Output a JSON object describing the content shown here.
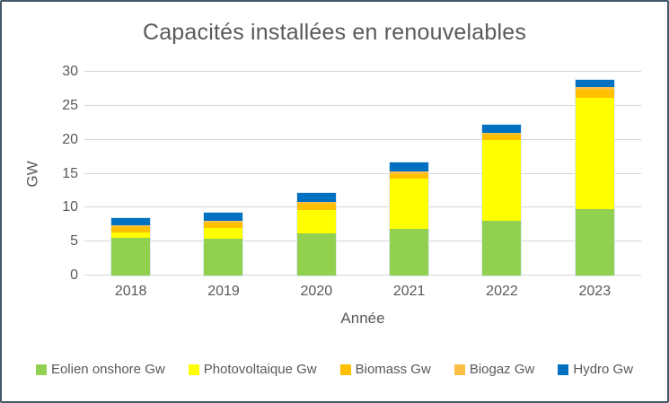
{
  "frame": {
    "border_color": "#44586A",
    "background_color": "#FFFFFF"
  },
  "chart": {
    "title": "Capacités installées en renouvelables",
    "y_axis_title": "GW",
    "x_axis_title": "Année",
    "text_color": "#595959",
    "gridline_color": "#D6D6D6"
  },
  "chart_data": {
    "type": "bar",
    "stacked": true,
    "title": "Capacités installées en renouvelables",
    "xlabel": "Année",
    "ylabel": "GW",
    "ylim": [
      0,
      30
    ],
    "y_ticks": [
      0,
      5,
      10,
      15,
      20,
      25,
      30
    ],
    "grid": true,
    "legend_position": "bottom",
    "categories": [
      "2018",
      "2019",
      "2020",
      "2021",
      "2022",
      "2023"
    ],
    "series": [
      {
        "name": "Eolien onshore Gw",
        "color": "#92D050",
        "values": [
          5.6,
          5.4,
          6.2,
          6.9,
          8.1,
          9.8
        ]
      },
      {
        "name": "Photovoltaique Gw",
        "color": "#FFFF00",
        "values": [
          0.7,
          1.6,
          3.5,
          7.4,
          11.9,
          16.4
        ]
      },
      {
        "name": "Biomass Gw",
        "color": "#FFC000",
        "values": [
          0.8,
          0.8,
          0.9,
          0.7,
          0.7,
          1.1
        ]
      },
      {
        "name": "Biogaz Gw",
        "color": "#FBBF45",
        "values": [
          0.3,
          0.3,
          0.3,
          0.3,
          0.3,
          0.4
        ]
      },
      {
        "name": "Hydro Gw",
        "color": "#0070C0",
        "values": [
          1.1,
          1.2,
          1.2,
          1.3,
          1.2,
          1.1
        ]
      }
    ],
    "totals": [
      8.5,
      9.3,
      12.1,
      16.6,
      22.2,
      28.8
    ]
  }
}
